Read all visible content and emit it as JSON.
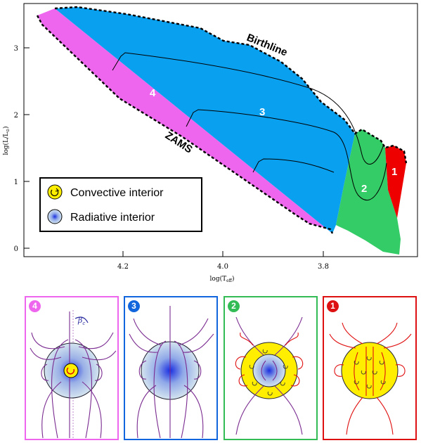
{
  "hr_diagram": {
    "x_axis": {
      "label": "log(T",
      "label_sub": "eff",
      "label_close": ")",
      "ticks": [
        "4.2",
        "4.0",
        "3.8"
      ]
    },
    "y_axis": {
      "label": "log(L/L",
      "label_sub": "⊙",
      "label_close": ")",
      "ticks": [
        "0",
        "1",
        "2",
        "3"
      ]
    },
    "curve_labels": {
      "birthline": "Birthline",
      "zams": "ZAMS"
    },
    "regions": [
      {
        "id": "4",
        "label": "4",
        "color": "#ee66ee"
      },
      {
        "id": "3",
        "label": "3",
        "color": "#0aa0f0"
      },
      {
        "id": "2",
        "label": "2",
        "color": "#33cc66"
      },
      {
        "id": "1",
        "label": "1",
        "color": "#ee0000"
      }
    ],
    "legend": [
      {
        "label": "Convective interior",
        "icon": "convective-circle-icon"
      },
      {
        "label": "Radiative interior",
        "icon": "radiative-circle-icon"
      }
    ]
  },
  "panels": [
    {
      "badge": "4",
      "color": "#ee66ee",
      "beta_symbol": "β",
      "beta_sub": "c"
    },
    {
      "badge": "3",
      "color": "#1166dd"
    },
    {
      "badge": "2",
      "color": "#33bb55"
    },
    {
      "badge": "1",
      "color": "#dd1111"
    }
  ]
}
